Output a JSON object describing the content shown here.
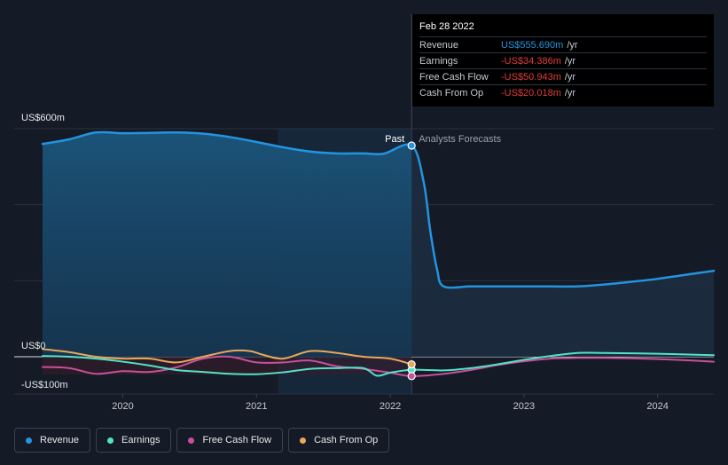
{
  "chart_data": {
    "type": "line",
    "y_axis_labels": [
      "US$600m",
      "US$0",
      "-US$100m"
    ],
    "x_tick_labels": [
      "2020",
      "2021",
      "2022",
      "2023",
      "2024"
    ],
    "past_label": "Past",
    "forecast_label": "Analysts Forecasts",
    "xlim": [
      2019.4,
      2024.42
    ],
    "ylim": [
      -100,
      600
    ],
    "past_end": 2022.16,
    "shade_start": 2021.16,
    "series": [
      {
        "name": "Revenue",
        "color": "#2394df",
        "x": [
          2019.4,
          2019.6,
          2019.8,
          2020.0,
          2020.2,
          2020.4,
          2020.6,
          2020.8,
          2021.0,
          2021.2,
          2021.4,
          2021.6,
          2021.8,
          2021.95,
          2022.16,
          2022.25,
          2022.3,
          2022.35,
          2022.4,
          2022.6,
          2022.8,
          2023.0,
          2023.2,
          2023.4,
          2023.6,
          2023.8,
          2024.0,
          2024.2,
          2024.42
        ],
        "values": [
          560,
          572,
          590,
          588,
          589,
          590,
          587,
          578,
          565,
          551,
          540,
          535,
          535,
          534,
          555.69,
          460,
          330,
          230,
          185,
          185,
          185,
          185,
          185,
          185,
          190,
          197,
          205,
          215,
          226
        ]
      },
      {
        "name": "Earnings",
        "color": "#52e3c8",
        "x": [
          2019.4,
          2019.6,
          2019.8,
          2020.0,
          2020.2,
          2020.4,
          2020.6,
          2020.8,
          2021.0,
          2021.2,
          2021.4,
          2021.6,
          2021.8,
          2021.9,
          2022.0,
          2022.16,
          2022.4,
          2022.6,
          2022.8,
          2023.0,
          2023.2,
          2023.4,
          2023.6,
          2023.8,
          2024.0,
          2024.2,
          2024.42
        ],
        "values": [
          2,
          0,
          -5,
          -13,
          -23,
          -35,
          -40,
          -45,
          -46,
          -41,
          -32,
          -30,
          -30,
          -50,
          -42,
          -34.386,
          -36,
          -30,
          -20,
          -8,
          2,
          10,
          10,
          9,
          8,
          6,
          4
        ]
      },
      {
        "name": "Free Cash Flow",
        "color": "#c8509a",
        "x": [
          2019.4,
          2019.6,
          2019.8,
          2020.0,
          2020.2,
          2020.4,
          2020.6,
          2020.8,
          2021.0,
          2021.2,
          2021.4,
          2021.6,
          2021.8,
          2022.0,
          2022.16,
          2022.4,
          2022.6,
          2022.8,
          2023.0,
          2023.2,
          2023.4,
          2023.6,
          2023.8,
          2024.0,
          2024.2,
          2024.42
        ],
        "values": [
          -27,
          -30,
          -45,
          -38,
          -40,
          -28,
          -5,
          0,
          -15,
          -15,
          -10,
          -25,
          -32,
          -42,
          -50.943,
          -45,
          -35,
          -22,
          -12,
          -5,
          -3,
          -3,
          -4,
          -6,
          -9,
          -13
        ]
      },
      {
        "name": "Cash From Op",
        "color": "#e8a85a",
        "x": [
          2019.4,
          2019.6,
          2019.8,
          2020.0,
          2020.2,
          2020.4,
          2020.6,
          2020.8,
          2020.95,
          2021.05,
          2021.2,
          2021.4,
          2021.6,
          2021.8,
          2022.0,
          2022.16
        ],
        "values": [
          20,
          12,
          0,
          -5,
          -5,
          -15,
          0,
          15,
          15,
          5,
          -5,
          15,
          10,
          0,
          -5,
          -20.018
        ]
      }
    ]
  },
  "tooltip": {
    "date": "Feb 28 2022",
    "rows": [
      {
        "label": "Revenue",
        "value": "US$555.690m",
        "unit": "/yr",
        "color": "#2394df"
      },
      {
        "label": "Earnings",
        "value": "-US$34.386m",
        "unit": "/yr",
        "color": "#e03c3c"
      },
      {
        "label": "Free Cash Flow",
        "value": "-US$50.943m",
        "unit": "/yr",
        "color": "#e03c3c"
      },
      {
        "label": "Cash From Op",
        "value": "-US$20.018m",
        "unit": "/yr",
        "color": "#e03c3c"
      }
    ]
  },
  "legend": [
    {
      "label": "Revenue",
      "color": "#2394df"
    },
    {
      "label": "Earnings",
      "color": "#52e3c8"
    },
    {
      "label": "Free Cash Flow",
      "color": "#c8509a"
    },
    {
      "label": "Cash From Op",
      "color": "#e8a85a"
    }
  ]
}
